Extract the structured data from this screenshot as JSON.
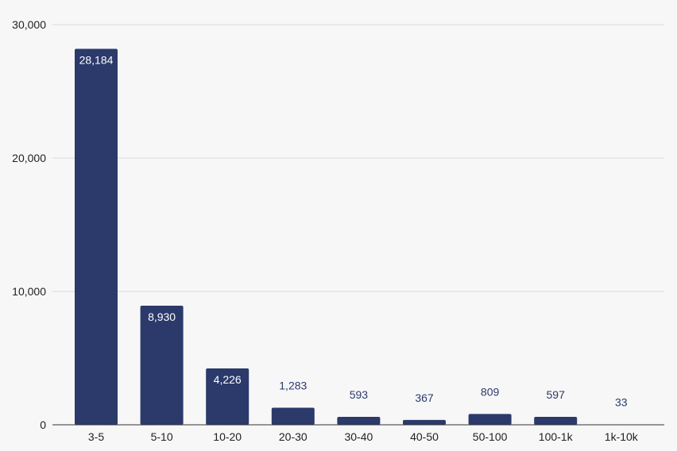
{
  "chart_data": {
    "type": "bar",
    "title": "",
    "xlabel": "",
    "ylabel": "",
    "categories": [
      "3-5",
      "5-10",
      "10-20",
      "20-30",
      "30-40",
      "40-50",
      "50-100",
      "100-1k",
      "1k-10k"
    ],
    "values": [
      28184,
      8930,
      4226,
      1283,
      593,
      367,
      809,
      597,
      33
    ],
    "value_labels": [
      "28,184",
      "8,930",
      "4,226",
      "1,283",
      "593",
      "367",
      "809",
      "597",
      "33"
    ],
    "ylim": [
      0,
      30000
    ],
    "yticks": [
      0,
      10000,
      20000,
      30000
    ],
    "ytick_labels": [
      "0",
      "10,000",
      "20,000",
      "30,000"
    ],
    "grid": true,
    "legend": "none",
    "colors": {
      "bar": "#2b3a6b",
      "label_inside": "#ffffff",
      "label_outside": "#2b3a6b",
      "grid": "#d9d9d9",
      "axis": "#333333"
    }
  }
}
